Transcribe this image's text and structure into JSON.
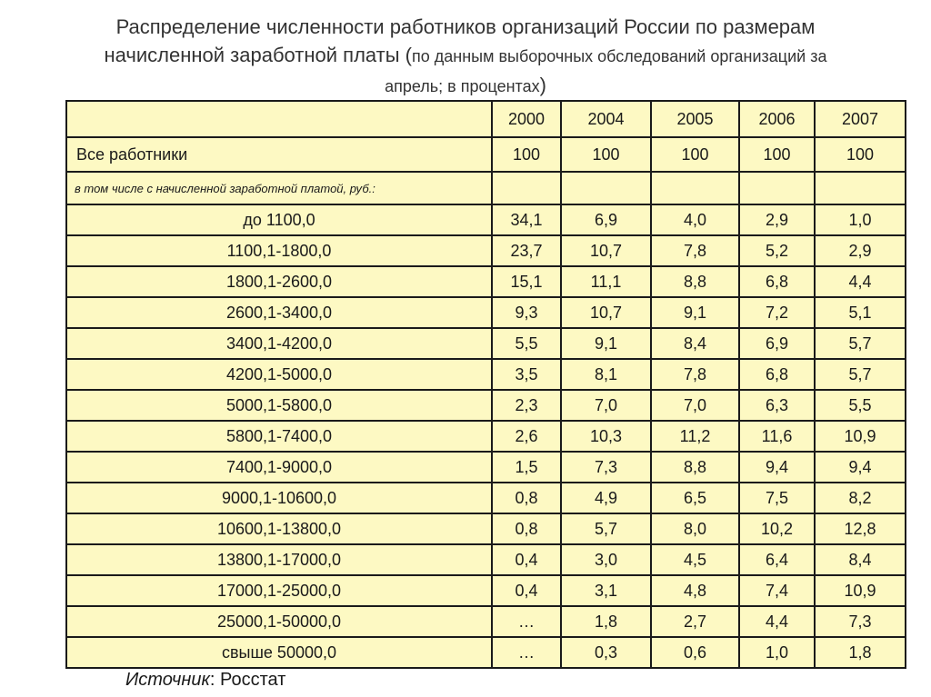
{
  "title": {
    "line1": "Распределение численности работников организаций России по размерам",
    "line2_main": "начисленной заработной платы (",
    "line2_small": "по данным выборочных обследований организаций за",
    "line3_small": "апрель; в процентах",
    "line3_close": ")"
  },
  "table": {
    "years": [
      "2000",
      "2004",
      "2005",
      "2006",
      "2007"
    ],
    "total_row": {
      "label": "Все работники",
      "values": [
        "100",
        "100",
        "100",
        "100",
        "100"
      ]
    },
    "sub_header": "в том числе с начисленной заработной платой, руб.:",
    "rows": [
      {
        "label": "до 1100,0",
        "values": [
          "34,1",
          "6,9",
          "4,0",
          "2,9",
          "1,0"
        ]
      },
      {
        "label": "1100,1-1800,0",
        "values": [
          "23,7",
          "10,7",
          "7,8",
          "5,2",
          "2,9"
        ]
      },
      {
        "label": "1800,1-2600,0",
        "values": [
          "15,1",
          "11,1",
          "8,8",
          "6,8",
          "4,4"
        ]
      },
      {
        "label": "2600,1-3400,0",
        "values": [
          "9,3",
          "10,7",
          "9,1",
          "7,2",
          "5,1"
        ]
      },
      {
        "label": "3400,1-4200,0",
        "values": [
          "5,5",
          "9,1",
          "8,4",
          "6,9",
          "5,7"
        ]
      },
      {
        "label": "4200,1-5000,0",
        "values": [
          "3,5",
          "8,1",
          "7,8",
          "6,8",
          "5,7"
        ]
      },
      {
        "label": "5000,1-5800,0",
        "values": [
          "2,3",
          "7,0",
          "7,0",
          "6,3",
          "5,5"
        ]
      },
      {
        "label": "5800,1-7400,0",
        "values": [
          "2,6",
          "10,3",
          "11,2",
          "11,6",
          "10,9"
        ]
      },
      {
        "label": "7400,1-9000,0",
        "values": [
          "1,5",
          "7,3",
          "8,8",
          "9,4",
          "9,4"
        ]
      },
      {
        "label": "9000,1-10600,0",
        "values": [
          "0,8",
          "4,9",
          "6,5",
          "7,5",
          "8,2"
        ]
      },
      {
        "label": "10600,1-13800,0",
        "values": [
          "0,8",
          "5,7",
          "8,0",
          "10,2",
          "12,8"
        ]
      },
      {
        "label": "13800,1-17000,0",
        "values": [
          "0,4",
          "3,0",
          "4,5",
          "6,4",
          "8,4"
        ]
      },
      {
        "label": "17000,1-25000,0",
        "values": [
          "0,4",
          "3,1",
          "4,8",
          "7,4",
          "10,9"
        ]
      },
      {
        "label": "25000,1-50000,0",
        "values": [
          "…",
          "1,8",
          "2,7",
          "4,4",
          "7,3"
        ]
      },
      {
        "label": "свыше 50000,0",
        "values": [
          "…",
          "0,3",
          "0,6",
          "1,0",
          "1,8"
        ]
      }
    ]
  },
  "source": {
    "label": "Источник",
    "sep": ": ",
    "value": "Росстат"
  },
  "colors": {
    "table_bg": "#fdf9c3",
    "border": "#1a1a1a",
    "title_text": "#333333"
  }
}
